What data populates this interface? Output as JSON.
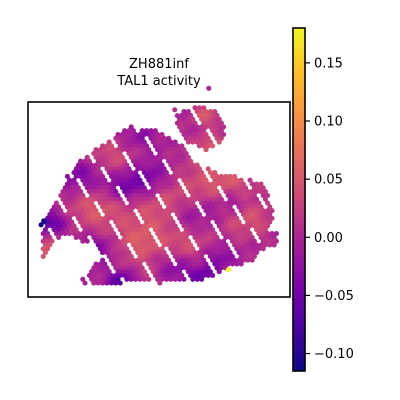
{
  "chart_data": {
    "type": "heatmap",
    "subtype": "spatial hexbin map",
    "title_lines": [
      "ZH881inf",
      "TAL1 activity"
    ],
    "xlabel": "",
    "ylabel": "",
    "colormap": "plasma",
    "colorbar": {
      "vmin": -0.115,
      "vmax": 0.18,
      "ticks": [
        -0.1,
        -0.05,
        0.0,
        0.05,
        0.1,
        0.15
      ],
      "tick_labels": [
        "−0.10",
        "−0.05",
        "0.00",
        "0.05",
        "0.10",
        "0.15"
      ]
    },
    "grid": false,
    "value_field": {
      "base": 0.0,
      "bumps": [
        {
          "x": 0.54,
          "y": 0.52,
          "amp": 0.06,
          "r": 0.1
        },
        {
          "x": 0.26,
          "y": 0.55,
          "amp": 0.05,
          "r": 0.08
        },
        {
          "x": 0.43,
          "y": 0.72,
          "amp": 0.05,
          "r": 0.08
        },
        {
          "x": 0.33,
          "y": 0.28,
          "amp": 0.04,
          "r": 0.07
        },
        {
          "x": 0.75,
          "y": 0.4,
          "amp": 0.05,
          "r": 0.09
        },
        {
          "x": 0.84,
          "y": 0.6,
          "amp": 0.045,
          "r": 0.07
        },
        {
          "x": 0.07,
          "y": 0.78,
          "amp": 0.06,
          "r": 0.05
        },
        {
          "x": 0.68,
          "y": 0.25,
          "amp": 0.04,
          "r": 0.05
        },
        {
          "x": 0.62,
          "y": 0.75,
          "amp": 0.04,
          "r": 0.07
        },
        {
          "x": 0.48,
          "y": 0.88,
          "amp": 0.03,
          "r": 0.06
        },
        {
          "x": 0.45,
          "y": 0.4,
          "amp": -0.06,
          "r": 0.07
        },
        {
          "x": 0.62,
          "y": 0.57,
          "amp": -0.05,
          "r": 0.07
        },
        {
          "x": 0.2,
          "y": 0.38,
          "amp": -0.04,
          "r": 0.06
        },
        {
          "x": 0.55,
          "y": 0.85,
          "amp": -0.05,
          "r": 0.06
        },
        {
          "x": 0.35,
          "y": 0.45,
          "amp": -0.04,
          "r": 0.05
        },
        {
          "x": 0.1,
          "y": 0.62,
          "amp": -0.05,
          "r": 0.04
        },
        {
          "x": 0.72,
          "y": 0.8,
          "amp": -0.04,
          "r": 0.05
        },
        {
          "x": 0.78,
          "y": 0.52,
          "amp": -0.04,
          "r": 0.05
        },
        {
          "x": 0.27,
          "y": 0.75,
          "amp": -0.04,
          "r": 0.05
        },
        {
          "x": 0.05,
          "y": 0.62,
          "amp": -0.09,
          "r": 0.02
        },
        {
          "x": 0.36,
          "y": 0.92,
          "amp": -0.07,
          "r": 0.04
        },
        {
          "x": 0.67,
          "y": 0.9,
          "amp": -0.05,
          "r": 0.04
        },
        {
          "x": 0.42,
          "y": 0.18,
          "amp": -0.03,
          "r": 0.05
        },
        {
          "x": 0.68,
          "y": 0.07,
          "amp": 0.05,
          "r": 0.04
        },
        {
          "x": 0.73,
          "y": 0.2,
          "amp": 0.02,
          "r": 0.04
        }
      ],
      "outliers": [
        {
          "x": 0.765,
          "y": 0.86,
          "value": 0.18
        },
        {
          "x": 0.06,
          "y": 0.61,
          "value": -0.11
        },
        {
          "x": 0.05,
          "y": 0.63,
          "value": -0.11
        }
      ]
    },
    "tissue_outline": {
      "main_region": [
        [
          0.4,
          0.12
        ],
        [
          0.5,
          0.15
        ],
        [
          0.56,
          0.2
        ],
        [
          0.6,
          0.22
        ],
        [
          0.66,
          0.32
        ],
        [
          0.72,
          0.36
        ],
        [
          0.8,
          0.38
        ],
        [
          0.9,
          0.42
        ],
        [
          0.92,
          0.5
        ],
        [
          0.94,
          0.6
        ],
        [
          0.92,
          0.66
        ],
        [
          0.96,
          0.68
        ],
        [
          0.94,
          0.74
        ],
        [
          0.88,
          0.76
        ],
        [
          0.86,
          0.82
        ],
        [
          0.8,
          0.84
        ],
        [
          0.74,
          0.86
        ],
        [
          0.7,
          0.9
        ],
        [
          0.64,
          0.92
        ],
        [
          0.56,
          0.92
        ],
        [
          0.5,
          0.93
        ],
        [
          0.42,
          0.92
        ],
        [
          0.34,
          0.94
        ],
        [
          0.24,
          0.94
        ],
        [
          0.2,
          0.92
        ],
        [
          0.24,
          0.86
        ],
        [
          0.28,
          0.8
        ],
        [
          0.27,
          0.74
        ],
        [
          0.22,
          0.72
        ],
        [
          0.18,
          0.7
        ],
        [
          0.14,
          0.68
        ],
        [
          0.1,
          0.72
        ],
        [
          0.08,
          0.78
        ],
        [
          0.05,
          0.8
        ],
        [
          0.05,
          0.7
        ],
        [
          0.06,
          0.62
        ],
        [
          0.08,
          0.55
        ],
        [
          0.12,
          0.48
        ],
        [
          0.15,
          0.38
        ],
        [
          0.2,
          0.3
        ],
        [
          0.26,
          0.24
        ],
        [
          0.32,
          0.18
        ]
      ],
      "satellite_region": [
        [
          0.58,
          0.05
        ],
        [
          0.66,
          0.02
        ],
        [
          0.72,
          0.05
        ],
        [
          0.76,
          0.12
        ],
        [
          0.74,
          0.22
        ],
        [
          0.68,
          0.25
        ],
        [
          0.6,
          0.2
        ],
        [
          0.56,
          0.12
        ]
      ]
    },
    "note": "Hexagonal spot map of spatial transcriptomics sample; positions normalized to axes box (0..1, y downward)."
  }
}
